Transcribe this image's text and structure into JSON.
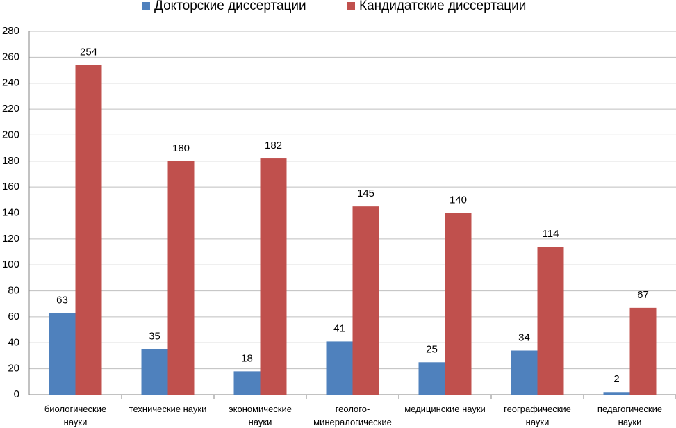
{
  "chart_data": {
    "type": "bar",
    "categories": [
      "биологические науки",
      "технические науки",
      "экономические науки",
      "геолого-минералогические науки",
      "медицинские науки",
      "географические науки",
      "педагогические науки"
    ],
    "series": [
      {
        "name": "Докторские диссертации",
        "color": "#4f81bd",
        "values": [
          63,
          35,
          18,
          41,
          25,
          34,
          2
        ]
      },
      {
        "name": "Кандидатские диссертации",
        "color": "#c0504d",
        "values": [
          254,
          180,
          182,
          145,
          140,
          114,
          67
        ]
      }
    ],
    "ylim": [
      0,
      280
    ],
    "yticks": [
      0,
      20,
      40,
      60,
      80,
      100,
      120,
      140,
      160,
      180,
      200,
      220,
      240,
      260,
      280
    ],
    "grid": true,
    "legend": "top"
  }
}
